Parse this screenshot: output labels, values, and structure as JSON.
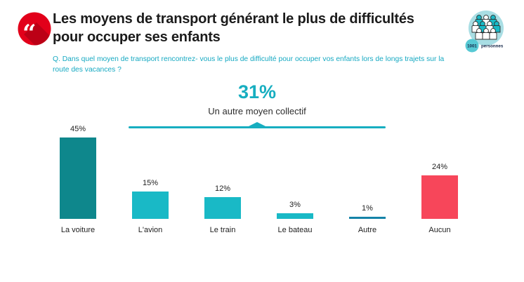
{
  "header": {
    "title": "Les moyens de transport générant le plus de difficultés pour occuper ses enfants",
    "title_lines": [
      "Les moyens de transport générant le plus de difficultés",
      "pour occuper ses enfants"
    ],
    "question": "Q. Dans quel moyen de transport rencontrez- vous le plus de difficulté pour occuper vos enfants lors de longs trajets sur la route des vacances ?",
    "question_lines": [
      "Q. Dans quel moyen de transport rencontrez- vous le plus de difficulté pour occuper vos enfants lors de longs trajets sur la",
      "route des vacances ?"
    ],
    "quote_icon_glyph": "“",
    "sample_badge": {
      "count": "1001",
      "unit": "personnes"
    }
  },
  "callout": {
    "value": "31%",
    "label": "Un autre moyen collectif"
  },
  "chart_data": {
    "type": "bar",
    "title": "Les moyens de transport générant le plus de difficultés pour occuper ses enfants",
    "unit": "%",
    "categories": [
      "La voiture",
      "L'avion",
      "Le train",
      "Le bateau",
      "Autre",
      "Aucun"
    ],
    "values": [
      45,
      15,
      12,
      3,
      1,
      24
    ],
    "ylim": [
      0,
      50
    ],
    "grid": false,
    "legend": false,
    "bars": [
      {
        "category": "La voiture",
        "value": 45,
        "display": "45%",
        "color": "#0E878C"
      },
      {
        "category": "L'avion",
        "value": 15,
        "display": "15%",
        "color": "#19B9C6"
      },
      {
        "category": "Le train",
        "value": 12,
        "display": "12%",
        "color": "#19B9C6"
      },
      {
        "category": "Le bateau",
        "value": 3,
        "display": "3%",
        "color": "#19B9C6"
      },
      {
        "category": "Autre",
        "value": 1,
        "display": "1%",
        "color": "#1583A8"
      },
      {
        "category": "Aucun",
        "value": 24,
        "display": "24%",
        "color": "#F7465A"
      }
    ],
    "annotation": {
      "value": "31%",
      "label": "Un autre moyen collectif",
      "covers": [
        "L'avion",
        "Le train",
        "Le bateau",
        "Autre"
      ]
    }
  },
  "colors": {
    "accent_teal": "#17AEC0",
    "subtitle_teal": "#16A9C2",
    "dark_teal_bar": "#0E878C",
    "cyan_bar": "#19B9C6",
    "steel_blue_bar": "#1583A8",
    "red_bar": "#F7465A",
    "brand_red": "#E2001A",
    "brand_red_shadow": "#BC0016",
    "icon_circle_bg": "#A9DEE4",
    "badge_circle": "#57C9D4",
    "badge_text": "#16294A"
  }
}
